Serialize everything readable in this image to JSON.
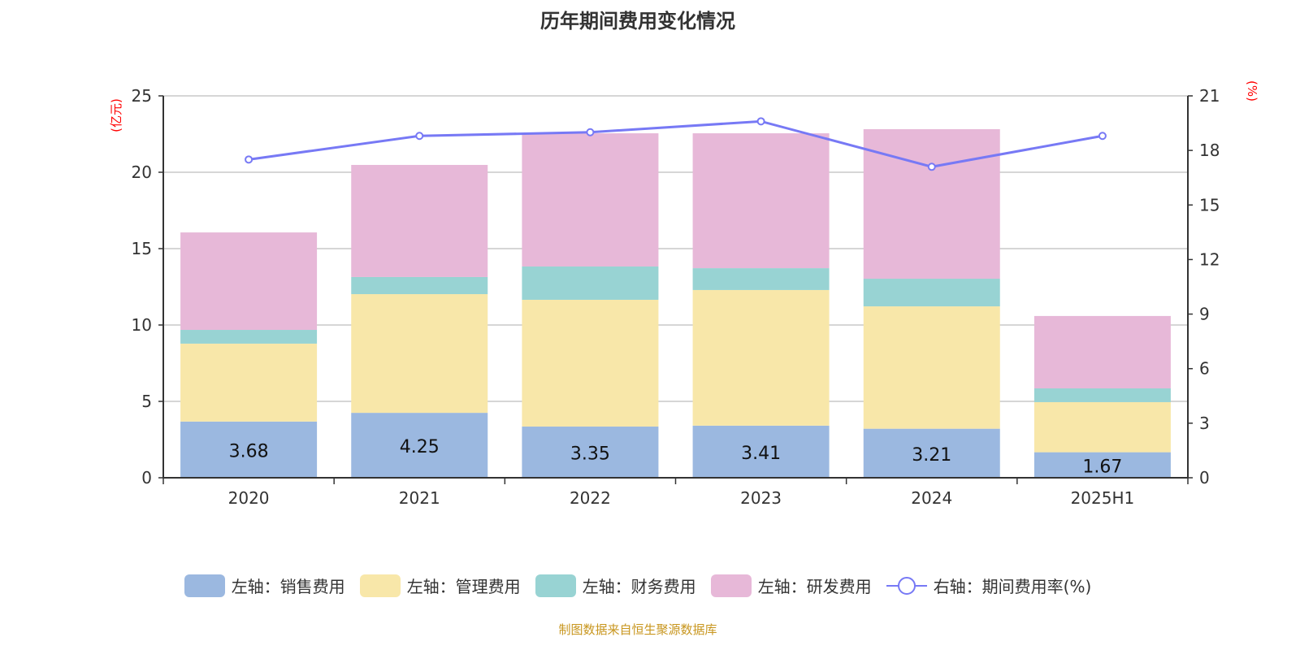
{
  "title": "历年期间费用变化情况",
  "source": "制图数据来自恒生聚源数据库",
  "chart_data": {
    "type": "bar",
    "stacked": true,
    "title": "历年期间费用变化情况",
    "categories": [
      "2020",
      "2021",
      "2022",
      "2023",
      "2024",
      "2025H1"
    ],
    "left_axis": {
      "label": "(亿元)",
      "ylim": [
        0,
        25
      ],
      "ticks": [
        0,
        5,
        10,
        15,
        20,
        25
      ]
    },
    "right_axis": {
      "label": "(%)",
      "ylim": [
        0,
        21
      ],
      "ticks": [
        0,
        3,
        6,
        9,
        12,
        15,
        18,
        21
      ]
    },
    "grid": true,
    "legend_position": "bottom",
    "series": [
      {
        "name": "左轴：销售费用",
        "axis": "left",
        "type": "bar",
        "color": "#9bb8e0",
        "values": [
          3.68,
          4.25,
          3.35,
          3.41,
          3.21,
          1.67
        ],
        "show_labels": true
      },
      {
        "name": "左轴：管理费用",
        "axis": "left",
        "type": "bar",
        "color": "#f8e7a9",
        "values": [
          5.1,
          7.77,
          8.3,
          8.88,
          8.01,
          3.28
        ]
      },
      {
        "name": "左轴：财务费用",
        "axis": "left",
        "type": "bar",
        "color": "#98d3d3",
        "values": [
          0.9,
          1.12,
          2.18,
          1.43,
          1.81,
          0.9
        ]
      },
      {
        "name": "左轴：研发费用",
        "axis": "left",
        "type": "bar",
        "color": "#e7b8d8",
        "values": [
          6.38,
          7.34,
          8.72,
          8.83,
          9.79,
          4.74
        ]
      },
      {
        "name": "右轴：期间费用率(%)",
        "axis": "right",
        "type": "line",
        "color": "#7779f5",
        "values": [
          17.5,
          18.8,
          19.0,
          19.6,
          17.1,
          18.8
        ]
      }
    ]
  }
}
